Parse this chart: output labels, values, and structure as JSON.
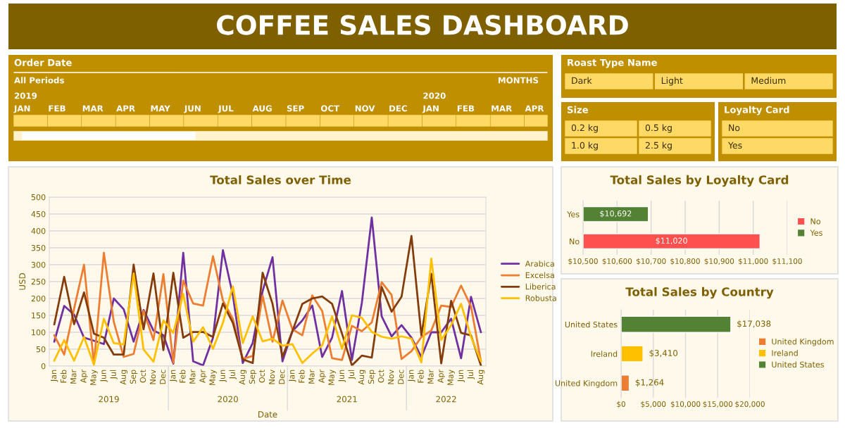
{
  "chart_data": [
    {
      "type": "other",
      "title": "COFFEE SALES DASHBOARD"
    },
    {
      "type": "other",
      "title": "Order Date",
      "annotations": [
        "All Periods",
        "MONTHS",
        "2019",
        "2020",
        "JAN",
        "FEB",
        "MAR",
        "APR",
        "MAY",
        "JUN",
        "JUL",
        "AUG",
        "SEP",
        "OCT",
        "NOV",
        "DEC",
        "JAN",
        "FEB",
        "MAR",
        "APR"
      ]
    },
    {
      "type": "other",
      "title": "Roast Type Name",
      "annotations": [
        "Dark",
        "Light",
        "Medium"
      ]
    },
    {
      "type": "other",
      "title": "Size",
      "annotations": [
        "0.2 kg",
        "0.5 kg",
        "1.0 kg",
        "2.5 kg"
      ]
    },
    {
      "type": "other",
      "title": "Loyalty Card",
      "annotations": [
        "No",
        "Yes"
      ]
    },
    {
      "type": "line",
      "title": "Total Sales over Time",
      "xlabel": "Date",
      "ylabel": "USD",
      "legend": "right",
      "grid": "y",
      "ylim": [
        0,
        500
      ],
      "yticks": [
        0,
        50,
        100,
        150,
        200,
        250,
        300,
        350,
        400,
        450,
        500
      ],
      "categories": [
        "Jan",
        "Feb",
        "Mar",
        "Apr",
        "May",
        "Jun",
        "Jul",
        "Aug",
        "Sep",
        "Oct",
        "Nov",
        "Dec",
        "Jan",
        "Feb",
        "Mar",
        "Apr",
        "May",
        "Jun",
        "Jul",
        "Aug",
        "Sep",
        "Oct",
        "Nov",
        "Dec",
        "Jan",
        "Feb",
        "Mar",
        "Apr",
        "May",
        "Jun",
        "Jul",
        "Aug",
        "Sep",
        "Oct",
        "Nov",
        "Dec",
        "Jan",
        "Feb",
        "Mar",
        "Apr",
        "May",
        "Jun",
        "Jul",
        "Aug"
      ],
      "annotations": [
        "2019",
        "2020",
        "2021",
        "2022"
      ],
      "series": [
        {
          "name": "Arabica",
          "color": "#7030a0",
          "values": [
            72,
            178,
            152,
            84,
            75,
            65,
            200,
            168,
            72,
            166,
            105,
            91,
            7,
            335,
            14,
            2,
            84,
            343,
            210,
            9,
            68,
            222,
            322,
            14,
            103,
            135,
            179,
            27,
            84,
            222,
            18,
            187,
            440,
            147,
            88,
            121,
            84,
            27,
            100,
            100,
            140,
            23,
            205,
            100
          ]
        },
        {
          "name": "Excelsa",
          "color": "#ed7d31",
          "values": [
            91,
            34,
            170,
            300,
            6,
            335,
            131,
            27,
            36,
            163,
            77,
            272,
            9,
            253,
            185,
            179,
            325,
            194,
            140,
            21,
            30,
            208,
            72,
            194,
            109,
            91,
            209,
            163,
            23,
            18,
            119,
            103,
            129,
            248,
            210,
            21,
            44,
            86,
            105,
            179,
            175,
            238,
            177,
            14
          ]
        },
        {
          "name": "Liberica",
          "color": "#843c0c",
          "values": [
            123,
            264,
            124,
            218,
            96,
            84,
            34,
            34,
            300,
            109,
            274,
            47,
            276,
            84,
            101,
            101,
            86,
            185,
            128,
            20,
            9,
            276,
            184,
            27,
            103,
            184,
            200,
            206,
            184,
            96,
            2,
            31,
            25,
            234,
            161,
            205,
            385,
            91,
            273,
            8,
            193,
            98,
            91,
            2
          ]
        },
        {
          "name": "Robusta",
          "color": "#ffc000",
          "values": [
            16,
            77,
            16,
            86,
            4,
            140,
            68,
            64,
            274,
            49,
            13,
            135,
            98,
            213,
            72,
            115,
            51,
            128,
            236,
            68,
            147,
            73,
            81,
            60,
            65,
            9,
            37,
            61,
            147,
            51,
            150,
            143,
            101,
            87,
            81,
            88,
            81,
            11,
            318,
            77,
            121,
            184,
            87,
            14
          ]
        }
      ]
    },
    {
      "type": "bar",
      "orientation": "horizontal",
      "title": "Total Sales by Loyalty Card",
      "legend": "right",
      "grid": "x",
      "categories": [
        "Yes",
        "No"
      ],
      "series": [
        {
          "name": "No",
          "color": "#ff5050",
          "values": [
            null,
            11020
          ],
          "value_labels": [
            null,
            "$11,020"
          ]
        },
        {
          "name": "Yes",
          "color": "#548235",
          "values": [
            10692,
            null
          ],
          "value_labels": [
            "$10,692",
            null
          ]
        }
      ],
      "xlim": [
        10500,
        11100
      ],
      "xticks": [
        {
          "value": 10500,
          "label": "$10,500"
        },
        {
          "value": 10600,
          "label": "$10,600"
        },
        {
          "value": 10700,
          "label": "$10,700"
        },
        {
          "value": 10800,
          "label": "$10,800"
        },
        {
          "value": 10900,
          "label": "$10,900"
        },
        {
          "value": 11000,
          "label": "$11,000"
        },
        {
          "value": 11100,
          "label": "$11,100"
        }
      ]
    },
    {
      "type": "bar",
      "orientation": "horizontal",
      "title": "Total Sales by Country",
      "legend": "right",
      "grid": "x",
      "categories": [
        "United States",
        "Ireland",
        "United Kingdom"
      ],
      "series": [
        {
          "name": "United Kingdom",
          "color": "#ed7d31",
          "values": [
            null,
            null,
            1264
          ],
          "value_labels": [
            null,
            null,
            "$1,264"
          ]
        },
        {
          "name": "Ireland",
          "color": "#ffc000",
          "values": [
            null,
            3410,
            null
          ],
          "value_labels": [
            null,
            "$3,410",
            null
          ]
        },
        {
          "name": "United States",
          "color": "#548235",
          "values": [
            17038,
            null,
            null
          ],
          "value_labels": [
            "$17,038",
            null,
            null
          ]
        }
      ],
      "xlim": [
        0,
        20000
      ],
      "xticks": [
        {
          "value": 0,
          "label": "$0"
        },
        {
          "value": 5000,
          "label": "$5,000"
        },
        {
          "value": 10000,
          "label": "$10,000"
        },
        {
          "value": 15000,
          "label": "$15,000"
        },
        {
          "value": 20000,
          "label": "$20,000"
        }
      ]
    }
  ]
}
